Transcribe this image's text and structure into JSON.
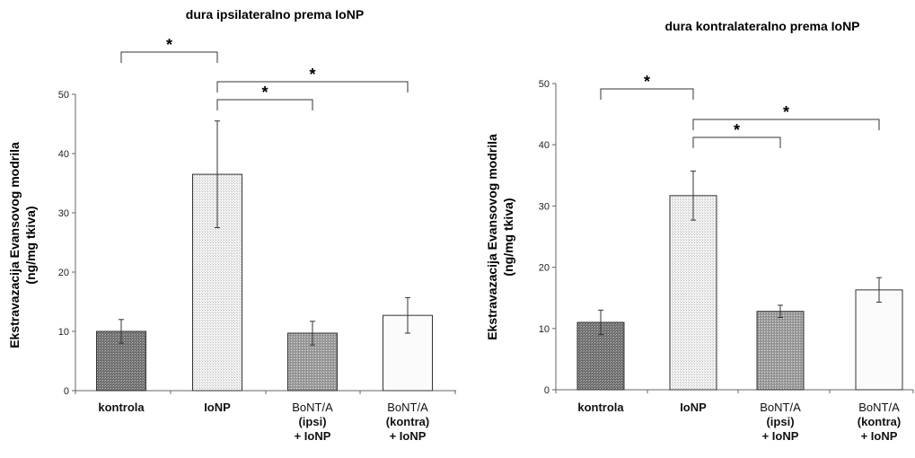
{
  "chart_data": [
    {
      "type": "bar",
      "title": "dura ipsilateralno prema IoNP",
      "ylabel": "Ekstravazacija Evansovog modrila",
      "ylabel2": "(ng/mg tkiva)",
      "ylim": [
        0,
        50
      ],
      "yticks": [
        0,
        10,
        20,
        30,
        40,
        50
      ],
      "categories": [
        [
          "kontrola"
        ],
        [
          "IoNP"
        ],
        [
          "BoNT/A",
          "(ipsi)",
          "+ IoNP"
        ],
        [
          "BoNT/A",
          "(kontra)",
          "+ IoNP"
        ]
      ],
      "values": [
        10,
        36.5,
        9.7,
        12.7
      ],
      "errors": [
        2,
        9,
        2,
        3
      ],
      "significance": [
        {
          "from": 0,
          "to": 1,
          "label": "*"
        },
        {
          "from": 1,
          "to": 2,
          "label": "*"
        },
        {
          "from": 1,
          "to": 3,
          "label": "*"
        }
      ],
      "grid": false
    },
    {
      "type": "bar",
      "title": "dura kontralateralno prema IoNP",
      "ylabel": "Ekstravazacija Evansovog modrila",
      "ylabel2": "(ng/mg tkiva)",
      "ylim": [
        0,
        50
      ],
      "yticks": [
        0,
        10,
        20,
        30,
        40,
        50
      ],
      "categories": [
        [
          "kontrola"
        ],
        [
          "IoNP"
        ],
        [
          "BoNT/A",
          "(ipsi)",
          "+ IoNP"
        ],
        [
          "BoNT/A",
          "(kontra)",
          "+ IoNP"
        ]
      ],
      "values": [
        11,
        31.7,
        12.8,
        16.3
      ],
      "errors": [
        2,
        4,
        1,
        2
      ],
      "significance": [
        {
          "from": 0,
          "to": 1,
          "label": "*"
        },
        {
          "from": 1,
          "to": 2,
          "label": "*"
        },
        {
          "from": 1,
          "to": 3,
          "label": "*"
        }
      ],
      "grid": false
    }
  ],
  "colors": {
    "dark_fill": "#7d7d7d",
    "light_fill": "#ececec",
    "medium_fill": "#a8a8a8",
    "white_fill": "#fbfbfb",
    "stroke": "#333333"
  }
}
